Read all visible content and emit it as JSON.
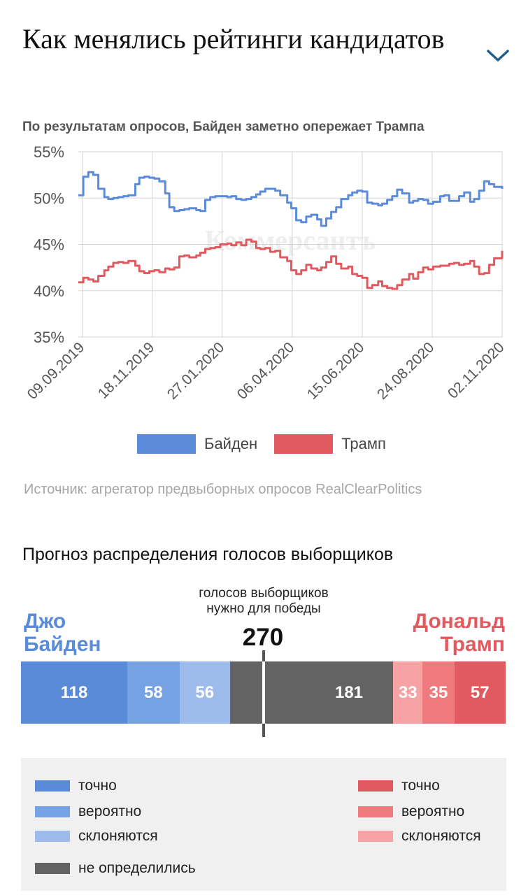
{
  "header": {
    "title": "Как менялись рейтинги кандидатов",
    "expand_icon": "chevron-down-icon"
  },
  "chart_data": [
    {
      "type": "line",
      "title": "По результатам опросов, Байден заметно опережает Трампа",
      "x_tick_labels": [
        "09.09.2019",
        "18.11.2019",
        "27.01.2020",
        "06.04.2020",
        "15.06.2020",
        "24.08.2020",
        "02.11.2020"
      ],
      "y_tick_labels": [
        "55%",
        "50%",
        "45%",
        "40%",
        "35%"
      ],
      "ylim": [
        35,
        55
      ],
      "xlim": [
        "2019-09-05",
        "2020-11-02"
      ],
      "grid": true,
      "legend_position": "bottom",
      "watermark": "Коммерсантъ",
      "series": [
        {
          "name": "Байден",
          "color": "#5b8bd9",
          "x": [
            "2019-09-05",
            "2019-09-10",
            "2019-09-15",
            "2019-09-20",
            "2019-09-25",
            "2019-10-01",
            "2019-10-05",
            "2019-10-10",
            "2019-10-15",
            "2019-10-20",
            "2019-10-25",
            "2019-11-01",
            "2019-11-05",
            "2019-11-10",
            "2019-11-15",
            "2019-11-20",
            "2019-11-25",
            "2019-12-01",
            "2019-12-05",
            "2019-12-10",
            "2019-12-15",
            "2019-12-20",
            "2019-12-25",
            "2020-01-01",
            "2020-01-05",
            "2020-01-10",
            "2020-01-15",
            "2020-01-20",
            "2020-01-25",
            "2020-02-01",
            "2020-02-05",
            "2020-02-10",
            "2020-02-15",
            "2020-02-20",
            "2020-02-25",
            "2020-03-01",
            "2020-03-05",
            "2020-03-10",
            "2020-03-15",
            "2020-03-20",
            "2020-03-25",
            "2020-04-01",
            "2020-04-05",
            "2020-04-10",
            "2020-04-15",
            "2020-04-20",
            "2020-04-25",
            "2020-05-01",
            "2020-05-05",
            "2020-05-10",
            "2020-05-15",
            "2020-05-20",
            "2020-05-25",
            "2020-06-01",
            "2020-06-05",
            "2020-06-10",
            "2020-06-15",
            "2020-06-20",
            "2020-06-25",
            "2020-07-01",
            "2020-07-05",
            "2020-07-10",
            "2020-07-15",
            "2020-07-20",
            "2020-07-25",
            "2020-08-01",
            "2020-08-05",
            "2020-08-10",
            "2020-08-15",
            "2020-08-20",
            "2020-08-25",
            "2020-09-01",
            "2020-09-05",
            "2020-09-10",
            "2020-09-15",
            "2020-09-20",
            "2020-09-25",
            "2020-10-01",
            "2020-10-05",
            "2020-10-10",
            "2020-10-15",
            "2020-10-20",
            "2020-10-25",
            "2020-11-02"
          ],
          "values": [
            50.3,
            52.3,
            52.8,
            52.5,
            51.0,
            50.1,
            49.9,
            50.0,
            50.1,
            50.2,
            50.3,
            51.5,
            52.2,
            52.3,
            52.2,
            52.1,
            51.8,
            50.5,
            49.0,
            48.6,
            48.7,
            48.8,
            48.9,
            48.7,
            48.6,
            49.8,
            50.1,
            50.2,
            50.2,
            50.1,
            50.2,
            49.9,
            49.8,
            49.9,
            50.1,
            50.4,
            50.7,
            51.0,
            51.0,
            50.8,
            50.3,
            49.5,
            48.9,
            47.6,
            47.4,
            48.0,
            48.2,
            47.7,
            47.0,
            47.8,
            48.5,
            49.0,
            49.9,
            50.3,
            50.6,
            50.8,
            50.7,
            49.5,
            49.4,
            49.2,
            49.4,
            49.8,
            50.2,
            50.9,
            50.5,
            49.5,
            49.7,
            49.9,
            49.8,
            49.4,
            49.6,
            50.2,
            50.3,
            49.7,
            49.7,
            50.2,
            50.6,
            49.6,
            49.9,
            50.8,
            51.8,
            51.5,
            51.2,
            51.0
          ],
          "line_width": "medium"
        },
        {
          "name": "Трамп",
          "color": "#e05a5f",
          "x": [
            "2019-09-05",
            "2019-09-10",
            "2019-09-15",
            "2019-09-20",
            "2019-09-25",
            "2019-10-01",
            "2019-10-05",
            "2019-10-10",
            "2019-10-15",
            "2019-10-20",
            "2019-10-25",
            "2019-11-01",
            "2019-11-05",
            "2019-11-10",
            "2019-11-15",
            "2019-11-20",
            "2019-11-25",
            "2019-12-01",
            "2019-12-05",
            "2019-12-10",
            "2019-12-15",
            "2019-12-20",
            "2019-12-25",
            "2020-01-01",
            "2020-01-05",
            "2020-01-10",
            "2020-01-15",
            "2020-01-20",
            "2020-01-25",
            "2020-02-01",
            "2020-02-05",
            "2020-02-10",
            "2020-02-15",
            "2020-02-20",
            "2020-02-25",
            "2020-03-01",
            "2020-03-05",
            "2020-03-10",
            "2020-03-15",
            "2020-03-20",
            "2020-03-25",
            "2020-04-01",
            "2020-04-05",
            "2020-04-10",
            "2020-04-15",
            "2020-04-20",
            "2020-04-25",
            "2020-05-01",
            "2020-05-05",
            "2020-05-10",
            "2020-05-15",
            "2020-05-20",
            "2020-05-25",
            "2020-06-01",
            "2020-06-05",
            "2020-06-10",
            "2020-06-15",
            "2020-06-20",
            "2020-06-25",
            "2020-07-01",
            "2020-07-05",
            "2020-07-10",
            "2020-07-15",
            "2020-07-20",
            "2020-07-25",
            "2020-08-01",
            "2020-08-05",
            "2020-08-10",
            "2020-08-15",
            "2020-08-20",
            "2020-08-25",
            "2020-09-01",
            "2020-09-05",
            "2020-09-10",
            "2020-09-15",
            "2020-09-20",
            "2020-09-25",
            "2020-10-01",
            "2020-10-05",
            "2020-10-10",
            "2020-10-15",
            "2020-10-20",
            "2020-10-25",
            "2020-11-02"
          ],
          "values": [
            40.9,
            41.4,
            41.2,
            41.0,
            41.6,
            42.2,
            42.6,
            43.0,
            43.1,
            43.0,
            43.2,
            42.7,
            42.1,
            41.9,
            42.1,
            42.2,
            42.0,
            42.4,
            42.3,
            42.5,
            43.7,
            43.8,
            43.6,
            43.8,
            44.1,
            44.5,
            44.6,
            44.7,
            45.0,
            45.1,
            44.9,
            45.2,
            44.9,
            45.5,
            45.3,
            44.6,
            44.5,
            44.6,
            44.2,
            44.3,
            43.6,
            43.2,
            42.2,
            41.8,
            42.2,
            42.8,
            42.4,
            42.2,
            42.5,
            43.1,
            43.7,
            42.9,
            42.4,
            42.6,
            41.8,
            41.6,
            41.4,
            40.3,
            40.6,
            41.0,
            40.5,
            40.3,
            40.2,
            40.6,
            41.2,
            41.8,
            41.3,
            42.0,
            42.5,
            42.3,
            42.6,
            42.7,
            42.7,
            42.9,
            43.0,
            42.8,
            42.9,
            43.2,
            42.6,
            41.8,
            41.9,
            42.8,
            43.5,
            44.3
          ],
          "line_width": "medium"
        }
      ]
    },
    {
      "type": "bar",
      "orientation": "horizontal-stacked",
      "title": "Прогноз распределения голосов выборщиков",
      "threshold": {
        "value": 270,
        "caption": "голосов выборщиков нужно для победы",
        "label": "270"
      },
      "total": 538,
      "candidates": {
        "left": "Джо Байден",
        "right": "Дональд Трамп"
      },
      "categories": [
        "Байден — точно",
        "Байден — вероятно",
        "Байден — склоняются",
        "не определились",
        "Трамп — склоняются",
        "Трамп — вероятно",
        "Трамп — точно"
      ],
      "values": [
        118,
        58,
        56,
        181,
        33,
        35,
        57
      ],
      "colors": [
        "#5a8bd8",
        "#76a1e3",
        "#9dbcec",
        "#636363",
        "#f7a3a5",
        "#ef7b7f",
        "#e05a5f"
      ]
    }
  ],
  "sections": {
    "electoral_title": "Прогноз распределения голосов выборщиков"
  },
  "legend": {
    "biden": "Байден",
    "trump": "Трамп",
    "biden_color": "#5b8bd9",
    "trump_color": "#e05a5f"
  },
  "source": "Источник: агрегатор предвыборных опросов RealClearPolitics",
  "electoral": {
    "caption": "голосов выборщиков нужно для победы",
    "threshold": "270",
    "biden_name_first": "Джо",
    "biden_name_last": "Байден",
    "trump_name_first": "Дональд",
    "trump_name_last": "Трамп"
  },
  "key": {
    "biden_sure": "точно",
    "biden_likely": "вероятно",
    "biden_lean": "склоняются",
    "undecided": "не определились",
    "trump_sure": "точно",
    "trump_likely": "вероятно",
    "trump_lean": "склоняются"
  }
}
